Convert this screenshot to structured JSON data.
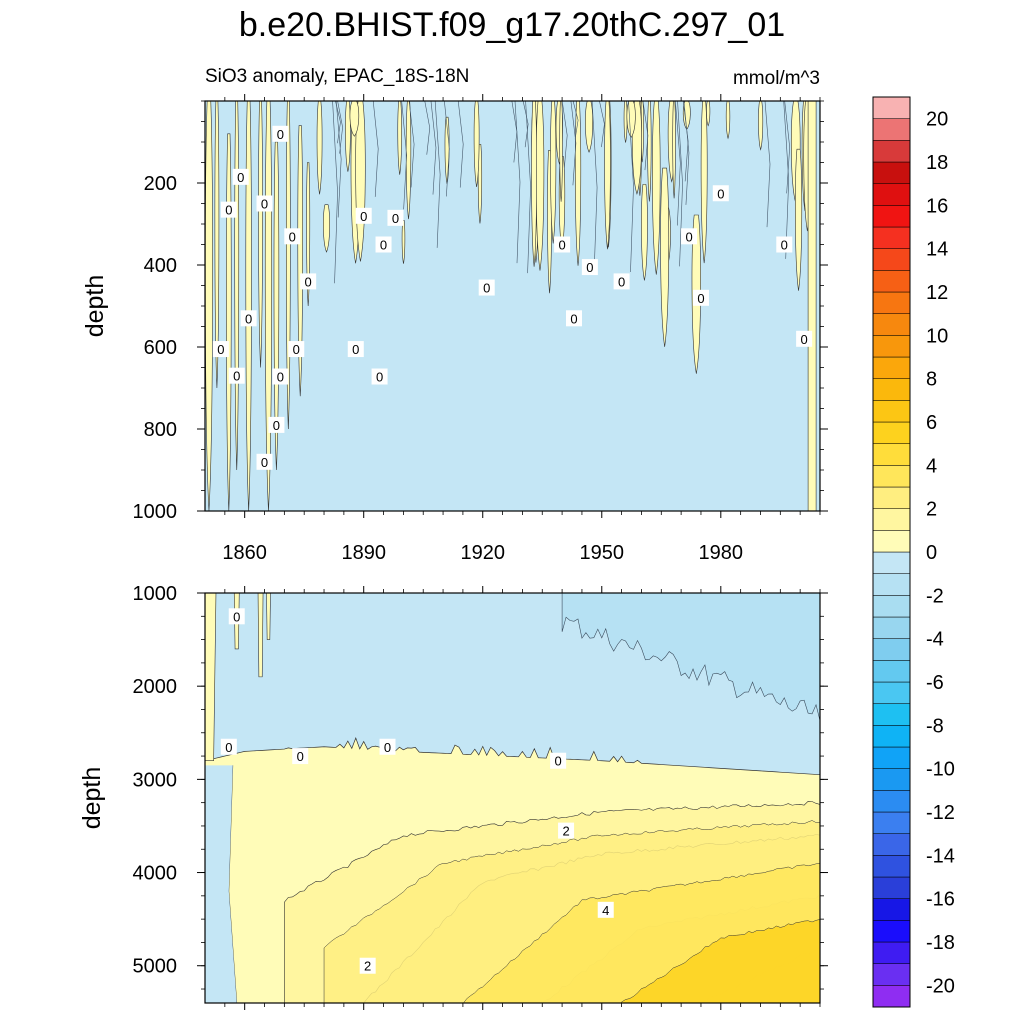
{
  "title": "b.e20.BHIST.f09_g17.20thC.297_01",
  "subtitle_left": "SiO3 anomaly, EPAC_18S-18N",
  "subtitle_right": "mmol/m^3",
  "chart_data": [
    {
      "type": "heatmap",
      "panel": "upper",
      "xlabel": "",
      "ylabel": "depth",
      "x_ticks": [
        1860,
        1890,
        1920,
        1950,
        1980
      ],
      "y_ticks": [
        200,
        400,
        600,
        800,
        1000
      ],
      "xlim": [
        1850,
        2005
      ],
      "ylim": [
        1000,
        0
      ],
      "description_field": "near-zero SiO3 anomaly: mostly -1 to 0 with scattered 0 to 1 columns, densest 1850-1875",
      "contour_labels": [
        "0"
      ],
      "grid": false
    },
    {
      "type": "heatmap",
      "panel": "lower",
      "xlabel": "",
      "ylabel": "depth",
      "x_ticks": [
        1860,
        1890,
        1920,
        1950,
        1980
      ],
      "y_ticks": [
        1000,
        2000,
        3000,
        4000,
        5000
      ],
      "xlim": [
        1850,
        2005
      ],
      "ylim": [
        5400,
        1000
      ],
      "zero_contour_depth": {
        "years": [
          1850,
          1860,
          1880,
          1900,
          1950,
          2005
        ],
        "depth": [
          2800,
          2700,
          2650,
          2700,
          2800,
          2950
        ]
      },
      "deep_contours": [
        {
          "level": 1,
          "years": [
            1870,
            1900,
            1950,
            2005
          ],
          "depth": [
            4300,
            3600,
            3350,
            3250
          ]
        },
        {
          "level": 2,
          "years": [
            1890,
            1920,
            1950,
            2005
          ],
          "depth": [
            5400,
            4100,
            3800,
            3600
          ]
        },
        {
          "level": 4,
          "years": [
            1935,
            1960,
            2005
          ],
          "depth": [
            5400,
            4600,
            4250
          ]
        },
        {
          "level": 6,
          "years": [
            1975,
            2005
          ],
          "depth": [
            5400,
            4800
          ]
        }
      ],
      "max_value_bottom_right": 7,
      "contour_labels": [
        "0",
        "0",
        "0",
        "0",
        "2",
        "4",
        "2"
      ],
      "grid": false
    }
  ],
  "colorbar": {
    "levels": [
      -21,
      -20,
      -19,
      -18,
      -17,
      -16,
      -15,
      -14,
      -13,
      -12,
      -11,
      -10,
      -9,
      -8,
      -7,
      -6,
      -5,
      -4,
      -3,
      -2,
      -1,
      0,
      1,
      2,
      3,
      4,
      5,
      6,
      7,
      8,
      9,
      10,
      11,
      12,
      13,
      14,
      15,
      16,
      17,
      18,
      19,
      20,
      21
    ],
    "tick_labels": [
      "-20",
      "-18",
      "-16",
      "-14",
      "-12",
      "-10",
      "-8",
      "-6",
      "-4",
      "-2",
      "0",
      "2",
      "4",
      "6",
      "8",
      "10",
      "12",
      "14",
      "16",
      "18",
      "20"
    ],
    "colors": [
      "#8f2df2",
      "#6a2ff2",
      "#3f1cf2",
      "#1a0dfc",
      "#1717e6",
      "#2a3fd9",
      "#2f52e0",
      "#3a66e8",
      "#3b7ff0",
      "#2b8cf2",
      "#1a99f2",
      "#10a3f7",
      "#0fb3f5",
      "#1ec0f2",
      "#4ac7f2",
      "#63c9f0",
      "#7fcdef",
      "#98d6ef",
      "#a9ddf1",
      "#b6e1f3",
      "#c4e6f5",
      "#fffcb8",
      "#fff6a0",
      "#ffee80",
      "#ffe65a",
      "#ffdd3a",
      "#fdd21e",
      "#fcc614",
      "#fbb80c",
      "#fba70b",
      "#f8970c",
      "#f7880e",
      "#f77611",
      "#f66015",
      "#f5481a",
      "#f53020",
      "#f01412",
      "#df1010",
      "#c8100e",
      "#d83a3a",
      "#ec7474",
      "#f8b2b2"
    ]
  }
}
